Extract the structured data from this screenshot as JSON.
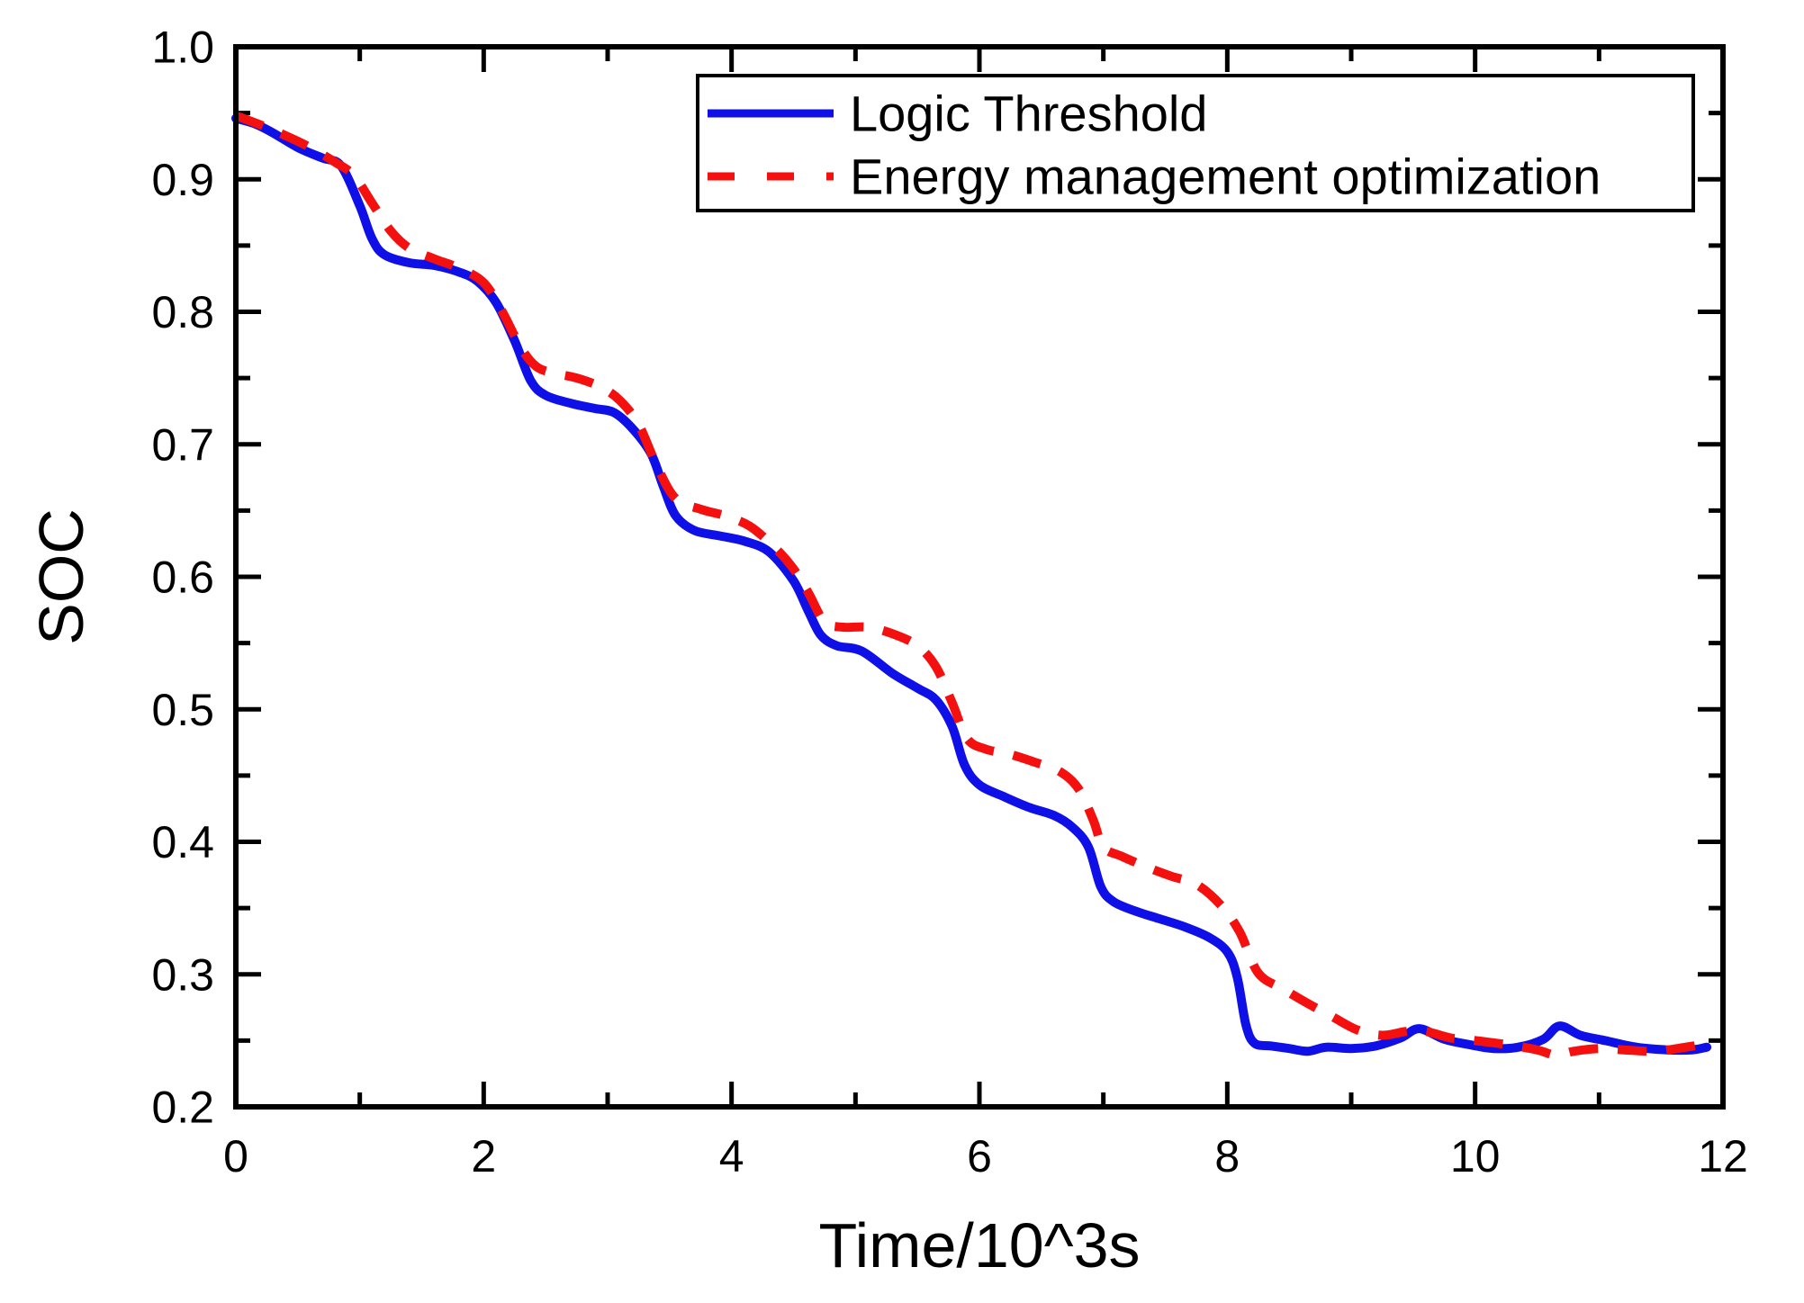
{
  "figure": {
    "background": "#ffffff",
    "frame_color": "#000000"
  },
  "chart_data": {
    "type": "line",
    "title": "",
    "xlabel": "Time/10^3s",
    "ylabel": "SOC",
    "xlim": [
      0,
      12
    ],
    "ylim": [
      0.2,
      1.0
    ],
    "grid": false,
    "x_major_ticks": [
      0,
      2,
      4,
      6,
      8,
      10,
      12
    ],
    "x_minor_ticks": [
      1,
      3,
      5,
      7,
      9,
      11
    ],
    "x_tick_labels": [
      "0",
      "2",
      "4",
      "6",
      "8",
      "10",
      "12"
    ],
    "y_major_ticks": [
      0.2,
      0.3,
      0.4,
      0.5,
      0.6,
      0.7,
      0.8,
      0.9,
      1.0
    ],
    "y_minor_ticks": [
      0.25,
      0.35,
      0.45,
      0.55,
      0.65,
      0.75,
      0.85,
      0.95
    ],
    "y_tick_labels": [
      "0.2",
      "0.3",
      "0.4",
      "0.5",
      "0.6",
      "0.7",
      "0.8",
      "0.9",
      "1.0"
    ],
    "legend": {
      "position": "top-center-inside",
      "border_color": "#000000"
    },
    "series": [
      {
        "name": "Logic Threshold",
        "color": "#0f0fe8",
        "style": "solid",
        "points": [
          [
            0.0,
            0.946
          ],
          [
            0.15,
            0.942
          ],
          [
            0.3,
            0.935
          ],
          [
            0.5,
            0.924
          ],
          [
            0.7,
            0.916
          ],
          [
            0.85,
            0.91
          ],
          [
            1.0,
            0.88
          ],
          [
            1.1,
            0.855
          ],
          [
            1.2,
            0.843
          ],
          [
            1.4,
            0.837
          ],
          [
            1.6,
            0.835
          ],
          [
            1.8,
            0.83
          ],
          [
            1.95,
            0.823
          ],
          [
            2.1,
            0.807
          ],
          [
            2.25,
            0.778
          ],
          [
            2.38,
            0.748
          ],
          [
            2.5,
            0.737
          ],
          [
            2.7,
            0.731
          ],
          [
            2.9,
            0.727
          ],
          [
            3.05,
            0.724
          ],
          [
            3.2,
            0.712
          ],
          [
            3.35,
            0.693
          ],
          [
            3.45,
            0.668
          ],
          [
            3.55,
            0.646
          ],
          [
            3.7,
            0.635
          ],
          [
            3.9,
            0.631
          ],
          [
            4.1,
            0.627
          ],
          [
            4.3,
            0.619
          ],
          [
            4.5,
            0.597
          ],
          [
            4.62,
            0.574
          ],
          [
            4.72,
            0.556
          ],
          [
            4.85,
            0.548
          ],
          [
            5.05,
            0.544
          ],
          [
            5.3,
            0.527
          ],
          [
            5.5,
            0.516
          ],
          [
            5.65,
            0.507
          ],
          [
            5.78,
            0.487
          ],
          [
            5.88,
            0.458
          ],
          [
            6.0,
            0.443
          ],
          [
            6.2,
            0.434
          ],
          [
            6.4,
            0.426
          ],
          [
            6.6,
            0.42
          ],
          [
            6.75,
            0.411
          ],
          [
            6.88,
            0.396
          ],
          [
            6.98,
            0.366
          ],
          [
            7.08,
            0.355
          ],
          [
            7.25,
            0.348
          ],
          [
            7.45,
            0.342
          ],
          [
            7.65,
            0.336
          ],
          [
            7.85,
            0.328
          ],
          [
            8.0,
            0.317
          ],
          [
            8.08,
            0.298
          ],
          [
            8.15,
            0.262
          ],
          [
            8.22,
            0.248
          ],
          [
            8.35,
            0.246
          ],
          [
            8.5,
            0.244
          ],
          [
            8.65,
            0.242
          ],
          [
            8.8,
            0.245
          ],
          [
            9.0,
            0.244
          ],
          [
            9.2,
            0.246
          ],
          [
            9.4,
            0.252
          ],
          [
            9.55,
            0.259
          ],
          [
            9.75,
            0.251
          ],
          [
            9.95,
            0.247
          ],
          [
            10.15,
            0.244
          ],
          [
            10.35,
            0.245
          ],
          [
            10.55,
            0.251
          ],
          [
            10.68,
            0.261
          ],
          [
            10.85,
            0.254
          ],
          [
            11.05,
            0.25
          ],
          [
            11.3,
            0.245
          ],
          [
            11.55,
            0.243
          ],
          [
            11.75,
            0.243
          ],
          [
            11.87,
            0.245
          ]
        ]
      },
      {
        "name": "Energy management optimization",
        "color": "#f51010",
        "style": "dashed",
        "points": [
          [
            0.0,
            0.948
          ],
          [
            0.2,
            0.941
          ],
          [
            0.4,
            0.933
          ],
          [
            0.6,
            0.924
          ],
          [
            0.8,
            0.913
          ],
          [
            0.95,
            0.903
          ],
          [
            1.1,
            0.882
          ],
          [
            1.25,
            0.861
          ],
          [
            1.4,
            0.848
          ],
          [
            1.6,
            0.84
          ],
          [
            1.8,
            0.833
          ],
          [
            2.0,
            0.822
          ],
          [
            2.15,
            0.8
          ],
          [
            2.3,
            0.773
          ],
          [
            2.42,
            0.759
          ],
          [
            2.55,
            0.754
          ],
          [
            2.75,
            0.75
          ],
          [
            2.95,
            0.743
          ],
          [
            3.1,
            0.733
          ],
          [
            3.25,
            0.715
          ],
          [
            3.4,
            0.683
          ],
          [
            3.55,
            0.659
          ],
          [
            3.75,
            0.651
          ],
          [
            3.95,
            0.646
          ],
          [
            4.15,
            0.638
          ],
          [
            4.35,
            0.622
          ],
          [
            4.5,
            0.606
          ],
          [
            4.62,
            0.588
          ],
          [
            4.75,
            0.566
          ],
          [
            4.9,
            0.562
          ],
          [
            5.1,
            0.562
          ],
          [
            5.3,
            0.557
          ],
          [
            5.5,
            0.548
          ],
          [
            5.65,
            0.532
          ],
          [
            5.78,
            0.505
          ],
          [
            5.9,
            0.478
          ],
          [
            6.05,
            0.47
          ],
          [
            6.25,
            0.466
          ],
          [
            6.45,
            0.46
          ],
          [
            6.65,
            0.453
          ],
          [
            6.8,
            0.44
          ],
          [
            6.92,
            0.416
          ],
          [
            7.0,
            0.396
          ],
          [
            7.15,
            0.389
          ],
          [
            7.35,
            0.381
          ],
          [
            7.55,
            0.374
          ],
          [
            7.75,
            0.368
          ],
          [
            7.95,
            0.352
          ],
          [
            8.1,
            0.332
          ],
          [
            8.25,
            0.301
          ],
          [
            8.45,
            0.289
          ],
          [
            8.65,
            0.278
          ],
          [
            8.85,
            0.268
          ],
          [
            9.05,
            0.258
          ],
          [
            9.25,
            0.254
          ],
          [
            9.45,
            0.257
          ],
          [
            9.6,
            0.257
          ],
          [
            9.8,
            0.252
          ],
          [
            10.0,
            0.25
          ],
          [
            10.25,
            0.247
          ],
          [
            10.5,
            0.243
          ],
          [
            10.65,
            0.239
          ],
          [
            10.8,
            0.242
          ],
          [
            11.0,
            0.244
          ],
          [
            11.2,
            0.243
          ],
          [
            11.45,
            0.242
          ],
          [
            11.7,
            0.245
          ],
          [
            11.9,
            0.248
          ]
        ]
      }
    ]
  }
}
